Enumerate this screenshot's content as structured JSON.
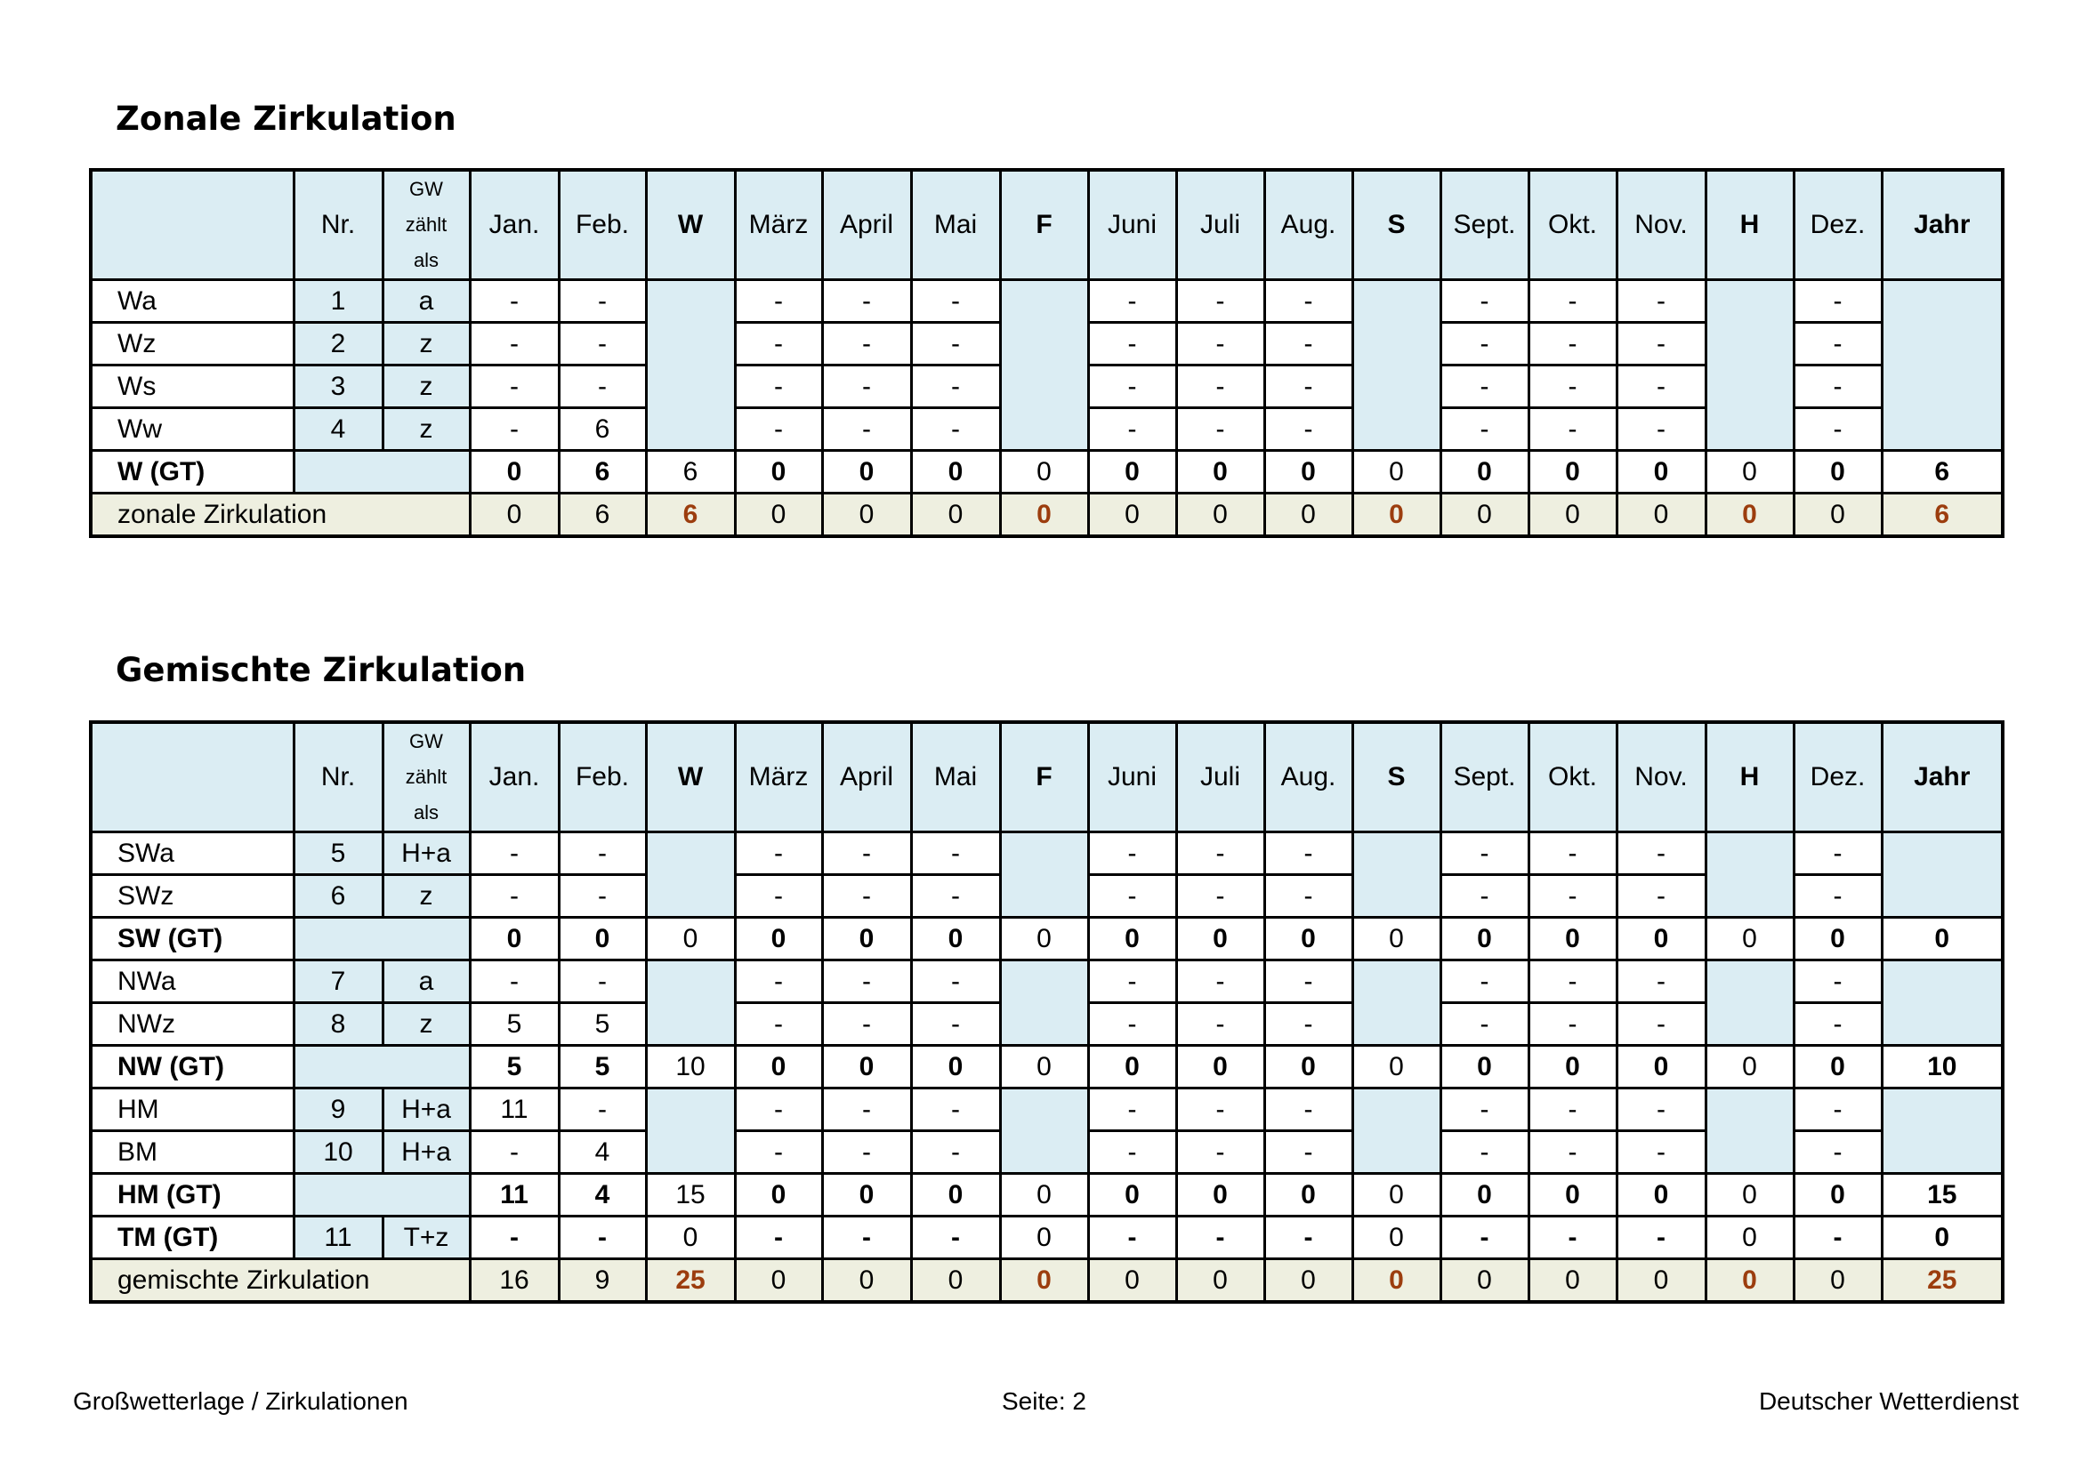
{
  "header": {
    "nr": "Nr.",
    "gw_lines": [
      "GW",
      "zählt",
      "als"
    ],
    "columns": [
      "Jan.",
      "Feb.",
      "W",
      "März",
      "April",
      "Mai",
      "F",
      "Juni",
      "Juli",
      "Aug.",
      "S",
      "Sept.",
      "Okt.",
      "Nov.",
      "H",
      "Dez.",
      "Jahr"
    ],
    "bold_columns": [
      "W",
      "F",
      "S",
      "H",
      "Jahr"
    ]
  },
  "colors": {
    "header_bg": "#dbedf3",
    "sum_bg": "#eeefe0",
    "highlight": "#9c3d0e"
  },
  "tables": [
    {
      "title": "Zonale Zirkulation",
      "rows": [
        {
          "kind": "detail",
          "name": "Wa",
          "nr": "1",
          "gw": "a",
          "months": [
            "-",
            "-",
            "-",
            "-",
            "-",
            "-",
            "-",
            "-",
            "-",
            "-",
            "-",
            "-"
          ]
        },
        {
          "kind": "detail",
          "name": "Wz",
          "nr": "2",
          "gw": "z",
          "months": [
            "-",
            "-",
            "-",
            "-",
            "-",
            "-",
            "-",
            "-",
            "-",
            "-",
            "-",
            "-"
          ]
        },
        {
          "kind": "detail",
          "name": "Ws",
          "nr": "3",
          "gw": "z",
          "months": [
            "-",
            "-",
            "-",
            "-",
            "-",
            "-",
            "-",
            "-",
            "-",
            "-",
            "-",
            "-"
          ]
        },
        {
          "kind": "detail",
          "name": "Ww",
          "nr": "4",
          "gw": "z",
          "months": [
            "-",
            "6",
            "-",
            "-",
            "-",
            "-",
            "-",
            "-",
            "-",
            "-",
            "-",
            "-"
          ]
        },
        {
          "kind": "gt",
          "name": "W (GT)",
          "values": [
            "0",
            "6",
            "6",
            "0",
            "0",
            "0",
            "0",
            "0",
            "0",
            "0",
            "0",
            "0",
            "0",
            "0",
            "0",
            "0",
            "6"
          ]
        },
        {
          "kind": "sum",
          "name": "zonale Zirkulation",
          "values": [
            "0",
            "6",
            "6",
            "0",
            "0",
            "0",
            "0",
            "0",
            "0",
            "0",
            "0",
            "0",
            "0",
            "0",
            "0",
            "0",
            "6"
          ]
        }
      ]
    },
    {
      "title": "Gemischte Zirkulation",
      "rows": [
        {
          "kind": "detail",
          "name": "SWa",
          "nr": "5",
          "gw": "H+a",
          "months": [
            "-",
            "-",
            "-",
            "-",
            "-",
            "-",
            "-",
            "-",
            "-",
            "-",
            "-",
            "-"
          ]
        },
        {
          "kind": "detail",
          "name": "SWz",
          "nr": "6",
          "gw": "z",
          "months": [
            "-",
            "-",
            "-",
            "-",
            "-",
            "-",
            "-",
            "-",
            "-",
            "-",
            "-",
            "-"
          ]
        },
        {
          "kind": "gt",
          "name": "SW (GT)",
          "values": [
            "0",
            "0",
            "0",
            "0",
            "0",
            "0",
            "0",
            "0",
            "0",
            "0",
            "0",
            "0",
            "0",
            "0",
            "0",
            "0",
            "0"
          ]
        },
        {
          "kind": "detail",
          "name": "NWa",
          "nr": "7",
          "gw": "a",
          "months": [
            "-",
            "-",
            "-",
            "-",
            "-",
            "-",
            "-",
            "-",
            "-",
            "-",
            "-",
            "-"
          ]
        },
        {
          "kind": "detail",
          "name": "NWz",
          "nr": "8",
          "gw": "z",
          "months": [
            "5",
            "5",
            "-",
            "-",
            "-",
            "-",
            "-",
            "-",
            "-",
            "-",
            "-",
            "-"
          ]
        },
        {
          "kind": "gt",
          "name": "NW (GT)",
          "values": [
            "5",
            "5",
            "10",
            "0",
            "0",
            "0",
            "0",
            "0",
            "0",
            "0",
            "0",
            "0",
            "0",
            "0",
            "0",
            "0",
            "10"
          ]
        },
        {
          "kind": "detail",
          "name": "HM",
          "nr": "9",
          "gw": "H+a",
          "months": [
            "11",
            "-",
            "-",
            "-",
            "-",
            "-",
            "-",
            "-",
            "-",
            "-",
            "-",
            "-"
          ]
        },
        {
          "kind": "detail",
          "name": "BM",
          "nr": "10",
          "gw": "H+a",
          "months": [
            "-",
            "4",
            "-",
            "-",
            "-",
            "-",
            "-",
            "-",
            "-",
            "-",
            "-",
            "-"
          ]
        },
        {
          "kind": "gt",
          "name": "HM (GT)",
          "values": [
            "11",
            "4",
            "15",
            "0",
            "0",
            "0",
            "0",
            "0",
            "0",
            "0",
            "0",
            "0",
            "0",
            "0",
            "0",
            "0",
            "15"
          ]
        },
        {
          "kind": "gt",
          "name": "TM (GT)",
          "nr": "11",
          "gw": "T+z",
          "values": [
            "-",
            "-",
            "0",
            "-",
            "-",
            "-",
            "0",
            "-",
            "-",
            "-",
            "0",
            "-",
            "-",
            "-",
            "0",
            "-",
            "0"
          ]
        },
        {
          "kind": "sum",
          "name": "gemischte Zirkulation",
          "values": [
            "16",
            "9",
            "25",
            "0",
            "0",
            "0",
            "0",
            "0",
            "0",
            "0",
            "0",
            "0",
            "0",
            "0",
            "0",
            "0",
            "25"
          ]
        }
      ]
    }
  ],
  "footer": {
    "left": "Großwetterlage / Zirkulationen",
    "center": "Seite: 2",
    "right": "Deutscher Wetterdienst"
  }
}
